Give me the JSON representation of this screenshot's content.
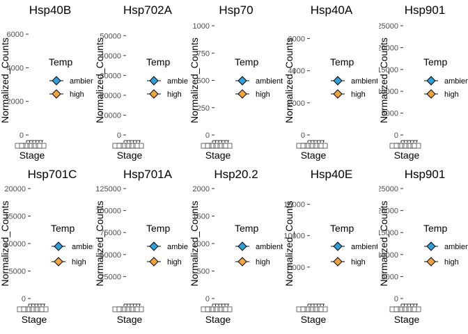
{
  "legend_title": "Temp",
  "temp_levels": [
    {
      "label": "ambient",
      "color": "#2e9fd8"
    },
    {
      "label": "high",
      "color": "#f0a43a"
    }
  ],
  "x_axis_label": "Stage",
  "y_axis_label": "Normalized_Counts",
  "chart_data": [
    {
      "type": "scatter",
      "title": "Hsp40B",
      "ylabel": "Normalized_Counts",
      "xlabel": "Stage",
      "ylim": [
        0,
        6500
      ],
      "yticks": [
        0,
        2000,
        4000,
        6000
      ]
    },
    {
      "type": "scatter",
      "title": "Hsp702A",
      "ylabel": "Normalized_Counts",
      "xlabel": "Stage",
      "ylim": [
        0,
        55000
      ],
      "yticks": [
        0,
        10000,
        20000,
        30000,
        40000,
        50000
      ]
    },
    {
      "type": "scatter",
      "title": "Hsp70",
      "ylabel": "Normalized_Counts",
      "xlabel": "Stage",
      "ylim": [
        0,
        1000
      ],
      "yticks": [
        0,
        250,
        500,
        750,
        1000
      ]
    },
    {
      "type": "scatter",
      "title": "Hsp40A",
      "ylabel": "Normalized_Counts",
      "xlabel": "Stage",
      "ylim": [
        0,
        6800
      ],
      "yticks": [
        0,
        2000,
        4000,
        6000
      ]
    },
    {
      "type": "scatter",
      "title": "Hsp901",
      "ylabel": "Normalized_Counts",
      "xlabel": "Stage",
      "ylim": [
        0,
        25000
      ],
      "yticks": [
        0,
        5000,
        10000,
        15000,
        20000,
        25000
      ]
    },
    {
      "type": "scatter",
      "title": "Hsp701C",
      "ylabel": "Normalized_Counts",
      "xlabel": "Stage",
      "ylim": [
        0,
        20000
      ],
      "yticks": [
        0,
        5000,
        10000,
        15000,
        20000
      ]
    },
    {
      "type": "scatter",
      "title": "Hsp701A",
      "ylabel": "Normalized_Counts",
      "xlabel": "Stage",
      "ylim": [
        0,
        125000
      ],
      "yticks": [
        25000,
        50000,
        75000,
        100000,
        125000
      ]
    },
    {
      "type": "scatter",
      "title": "Hsp20.2",
      "ylabel": "Normalized_Counts",
      "xlabel": "Stage",
      "ylim": [
        0,
        2000
      ],
      "yticks": [
        0,
        500,
        1000,
        1500,
        2000
      ]
    },
    {
      "type": "scatter",
      "title": "Hsp40E",
      "ylabel": "Normalized_Counts",
      "xlabel": "Stage",
      "ylim": [
        0,
        17500
      ],
      "yticks": [
        5000,
        10000,
        15000
      ]
    },
    {
      "type": "scatter",
      "title": "Hsp901",
      "ylabel": "Normalized_Counts",
      "xlabel": "Stage",
      "ylim": [
        0,
        25000
      ],
      "yticks": [
        0,
        5000,
        10000,
        15000,
        20000,
        25000
      ]
    }
  ]
}
